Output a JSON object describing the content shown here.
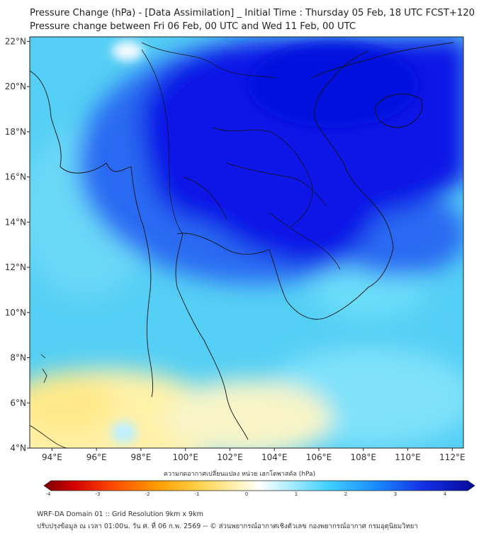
{
  "title_line1": "Pressure Change (hPa) - [Data Assimilation] _ Initial Time : Thursday 05 Feb, 18 UTC FCST+120",
  "title_line2": "Pressure change between Fri 06 Feb, 00 UTC and Wed 11 Feb, 00 UTC",
  "map": {
    "lon_ticks": [
      "94°E",
      "96°E",
      "98°E",
      "100°E",
      "102°E",
      "104°E",
      "106°E",
      "108°E",
      "110°E",
      "112°E"
    ],
    "lat_ticks": [
      "22°N",
      "20°N",
      "18°N",
      "16°N",
      "14°N",
      "12°N",
      "10°N",
      "8°N",
      "6°N",
      "4°N"
    ],
    "lon_range": [
      93.0,
      112.5
    ],
    "lat_range": [
      4.0,
      22.2
    ]
  },
  "colorbar": {
    "title": "ความกดอากาศเปลี่ยนแปลง หน่วย เฮกโตพาสคัล (hPa)",
    "tick_labels": [
      "-4",
      "-3",
      "-2",
      "-1",
      "0",
      "1",
      "2",
      "3",
      "4"
    ],
    "range": [
      -4,
      4
    ],
    "colors": [
      "#7a0000",
      "#d40000",
      "#ff4a00",
      "#ff9a00",
      "#ffd24a",
      "#fff2b8",
      "#ffffff",
      "#b8f0ff",
      "#40d0ff",
      "#1a8cff",
      "#1430e6",
      "#08089a"
    ]
  },
  "footer_line1": "WRF-DA Domain 01 :: Grid Resolution 9km x 9km",
  "footer_line2": "ปรับปรุงข้อมูล ณ เวลา 01:00น. วัน ศ. ที่ 06 ก.พ. 2569 -- © ส่วนพยากรณ์อากาศเชิงตัวเลข กองพยากรณ์อากาศ กรมอุตุนิยมวิทยา",
  "colors": {
    "field_light": "#55cff5",
    "field_deep": "#0a14e6",
    "field_warm": "#fff1a8",
    "coast": "#111111"
  }
}
